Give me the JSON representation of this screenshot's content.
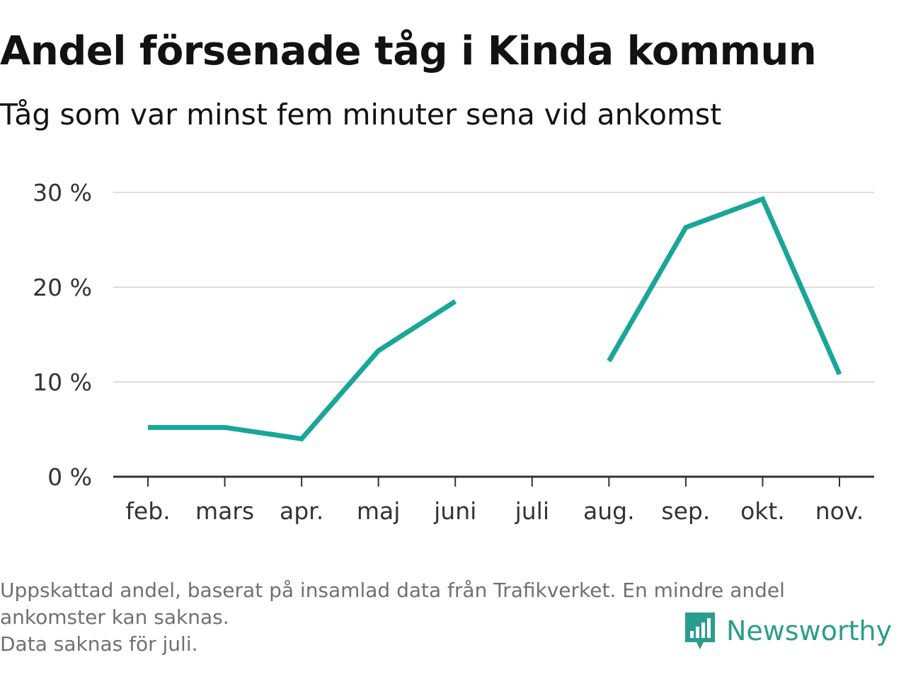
{
  "header": {
    "title": "Andel försenade tåg i Kinda kommun",
    "subtitle": "Tåg som var minst fem minuter sena vid ankomst"
  },
  "chart_data": {
    "type": "line",
    "categories": [
      "feb.",
      "mars",
      "apr.",
      "maj",
      "juni",
      "juli",
      "aug.",
      "sep.",
      "okt.",
      "nov."
    ],
    "series": [
      {
        "values": [
          5.2,
          5.2,
          4.0,
          13.3,
          18.5,
          null,
          12.2,
          26.3,
          29.3,
          10.8
        ]
      }
    ],
    "ylim": [
      0,
      30
    ],
    "yticks": [
      0,
      10,
      20,
      30
    ],
    "ytick_labels": [
      "0 %",
      "10 %",
      "20 %",
      "30 %"
    ],
    "grid": true,
    "line_color": "#19a698",
    "grid_color": "#dddddd",
    "axis_color": "#333333"
  },
  "footer": {
    "note_line1": "Uppskattad andel, baserat på insamlad data från Trafikverket. En mindre andel",
    "note_line2": "ankomster kan saknas.",
    "note_line3": "Data saknas för juli."
  },
  "brand": {
    "name": "Newsworthy",
    "logo_icon": "newsworthy-bar-chart-icon",
    "color": "#2a9d8f"
  }
}
